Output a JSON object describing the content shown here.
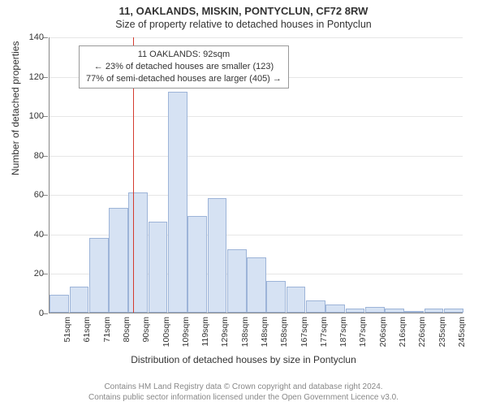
{
  "chart": {
    "type": "histogram",
    "main_title": "11, OAKLANDS, MISKIN, PONTYCLUN, CF72 8RW",
    "sub_title": "Size of property relative to detached houses in Pontyclun",
    "y_axis_title": "Number of detached properties",
    "x_axis_title": "Distribution of detached houses by size in Pontyclun",
    "background_color": "#ffffff",
    "bar_fill": "#d6e2f3",
    "bar_border": "#9db4d8",
    "grid_color": "#e6e6e6",
    "axis_color": "#888888",
    "marker_color": "#d43b2f",
    "ylim": [
      0,
      140
    ],
    "ytick_step": 20,
    "bar_width_ratio": 0.98,
    "categories": [
      "51sqm",
      "61sqm",
      "71sqm",
      "80sqm",
      "90sqm",
      "100sqm",
      "109sqm",
      "119sqm",
      "129sqm",
      "138sqm",
      "148sqm",
      "158sqm",
      "167sqm",
      "177sqm",
      "187sqm",
      "197sqm",
      "206sqm",
      "216sqm",
      "226sqm",
      "235sqm",
      "245sqm"
    ],
    "values": [
      9,
      13,
      38,
      53,
      61,
      46,
      112,
      49,
      58,
      32,
      28,
      16,
      13,
      6,
      4,
      2,
      3,
      2,
      1,
      2,
      2
    ],
    "marker_after_index": 4,
    "annotation": {
      "line1": "11 OAKLANDS: 92sqm",
      "line2": "← 23% of detached houses are smaller (123)",
      "line3": "77% of semi-detached houses are larger (405) →",
      "border_color": "#999999",
      "bg_color": "#ffffff",
      "fontsize": 11
    },
    "y_ticks": [
      0,
      20,
      40,
      60,
      80,
      100,
      120,
      140
    ]
  },
  "footer": {
    "line1": "Contains HM Land Registry data © Crown copyright and database right 2024.",
    "line2": "Contains public sector information licensed under the Open Government Licence v3.0."
  }
}
